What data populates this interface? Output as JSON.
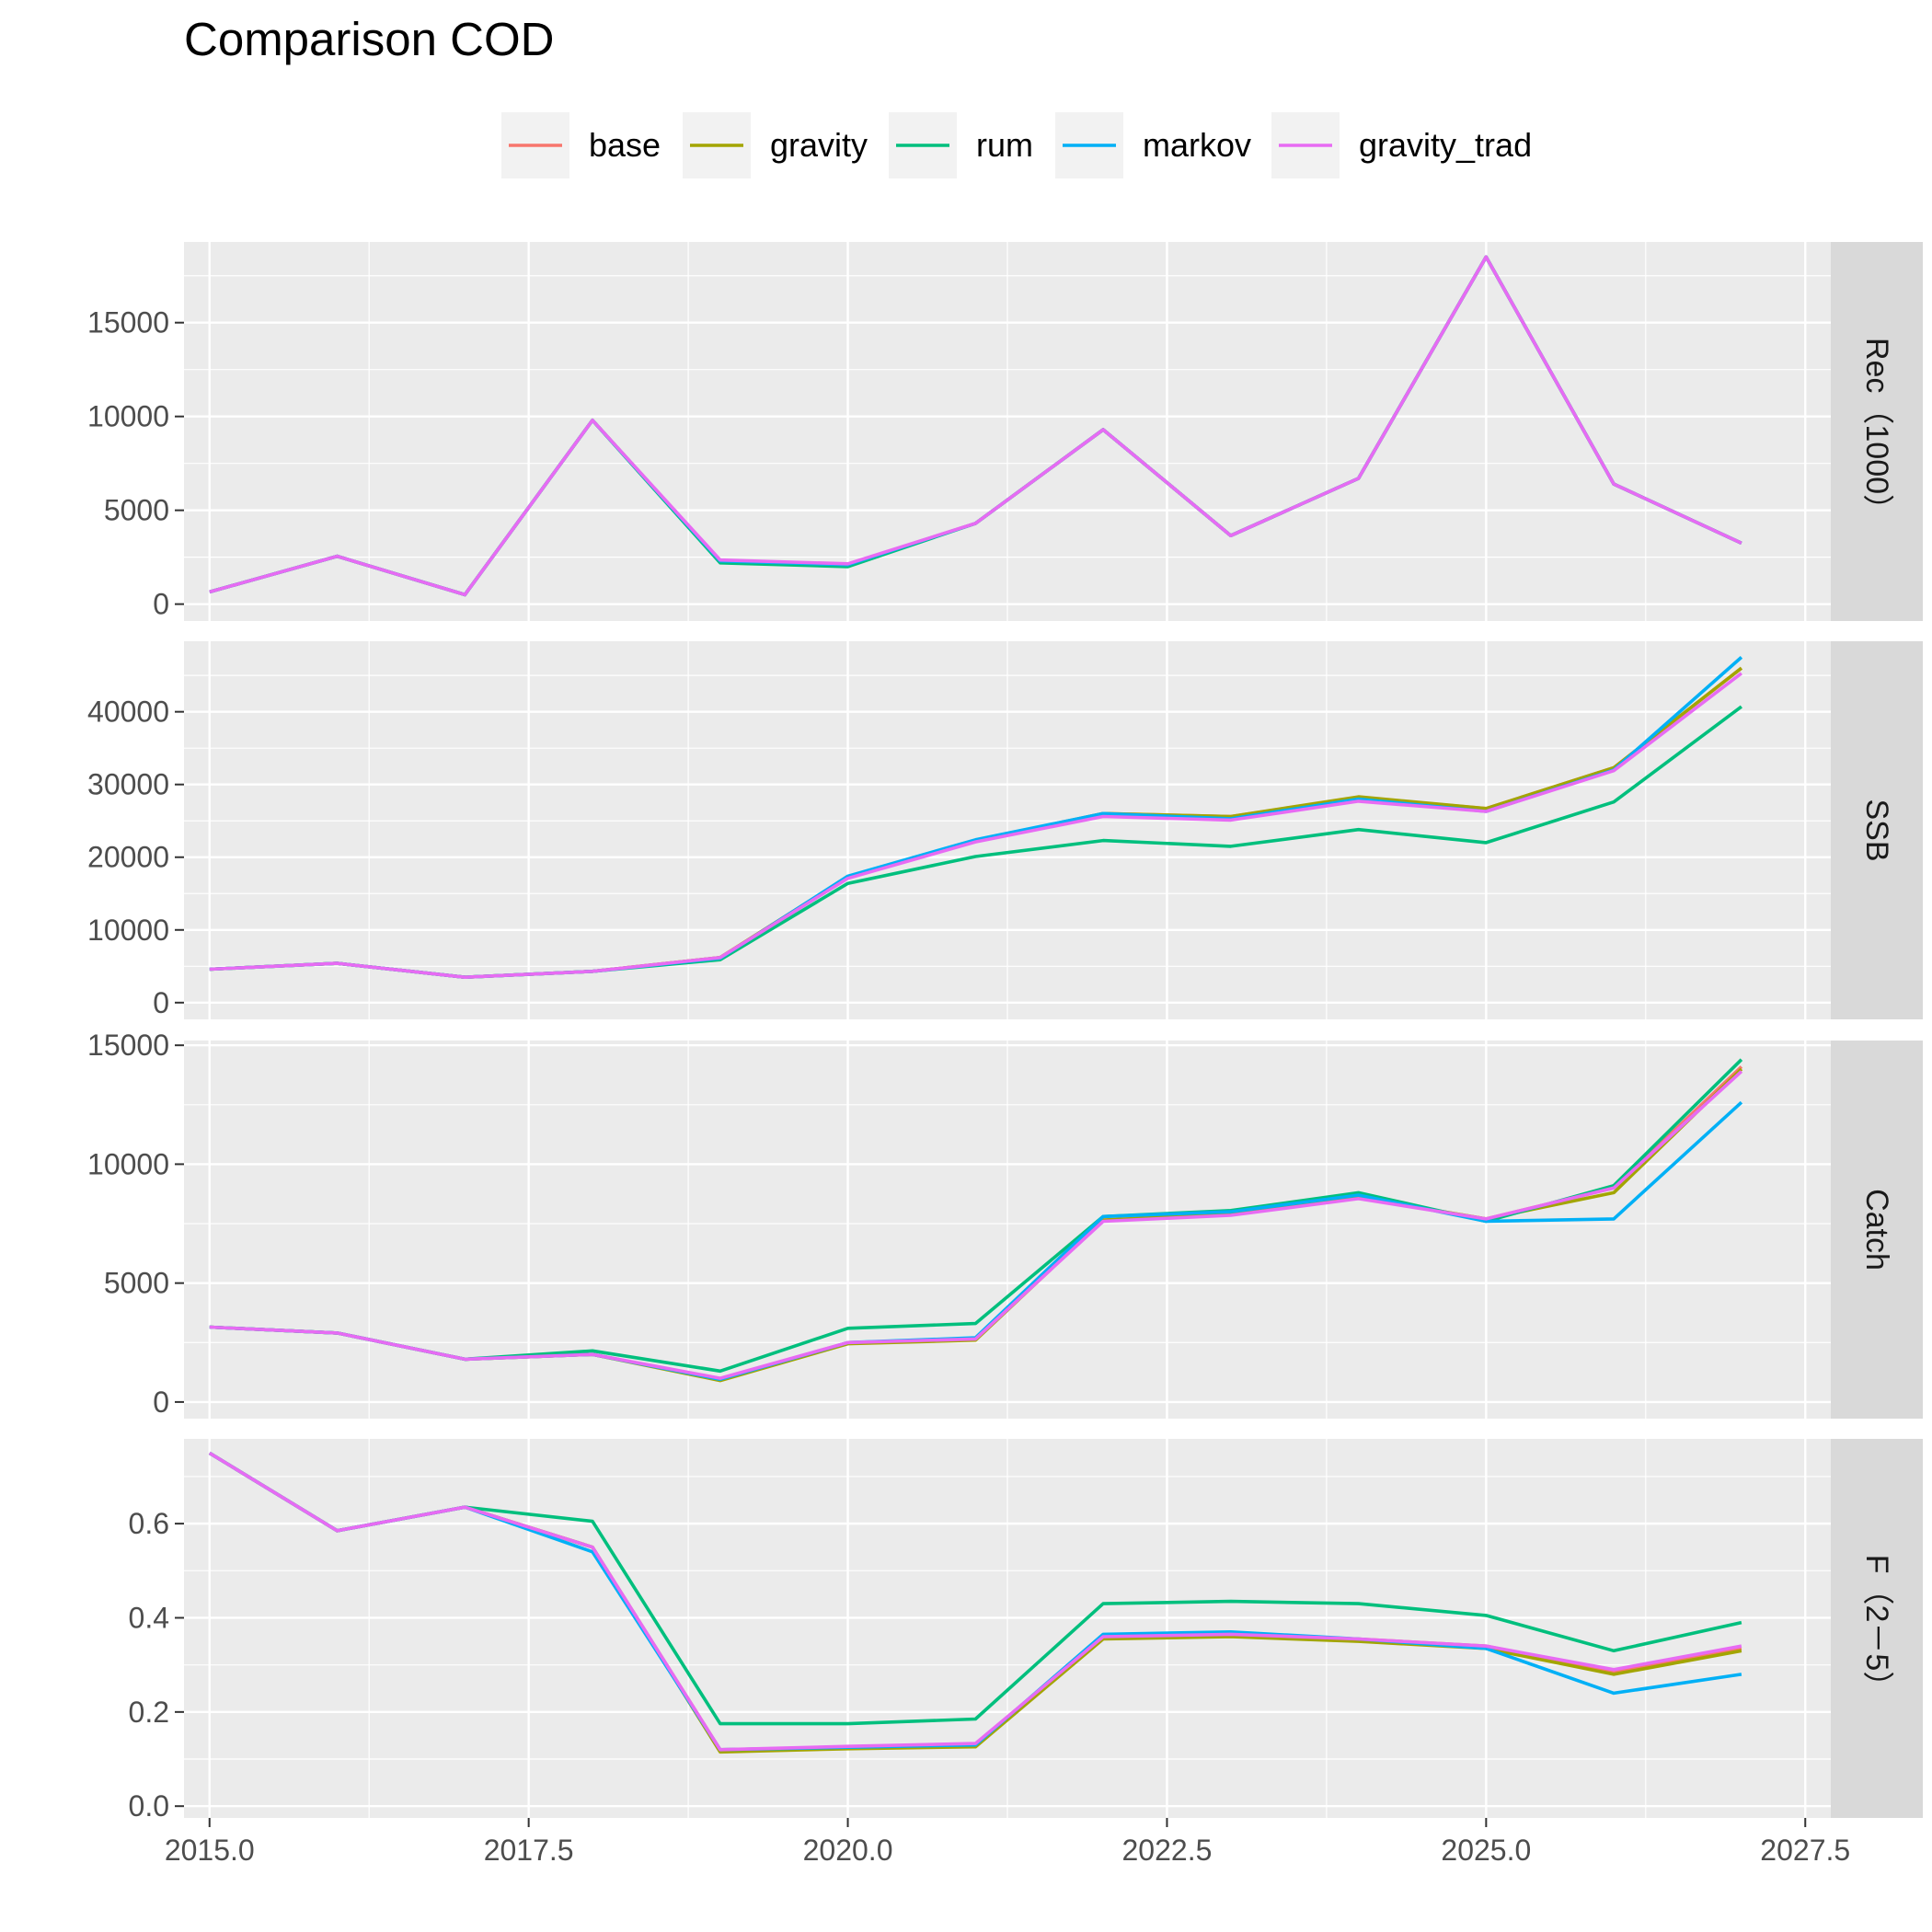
{
  "chart_data": {
    "type": "line",
    "title": "Comparison COD",
    "xlim": [
      2014.8,
      2027.7
    ],
    "x_ticks": [
      "2015.0",
      "2017.5",
      "2020.0",
      "2022.5",
      "2025.0",
      "2027.5"
    ],
    "x_tick_values": [
      2015.0,
      2017.5,
      2020.0,
      2022.5,
      2025.0,
      2027.5
    ],
    "x": [
      2015,
      2016,
      2017,
      2018,
      2019,
      2020,
      2021,
      2022,
      2023,
      2024,
      2025,
      2026,
      2027
    ],
    "legend": {
      "position": "top",
      "entries": [
        {
          "name": "base",
          "color": "#F8766D"
        },
        {
          "name": "gravity",
          "color": "#A3A500"
        },
        {
          "name": "rum",
          "color": "#00BF7D"
        },
        {
          "name": "markov",
          "color": "#00B0F6"
        },
        {
          "name": "gravity_trad",
          "color": "#E76BF3"
        }
      ]
    },
    "grid": true,
    "panels": [
      {
        "strip": "Rec（1000）",
        "ylim": [
          -900,
          19300
        ],
        "y_ticks": [
          "0",
          "5000",
          "10000",
          "15000"
        ],
        "y_tick_values": [
          0,
          5000,
          10000,
          15000
        ],
        "series": [
          {
            "name": "base",
            "values": [
              650,
              2550,
              500,
              9800,
              2300,
              2100,
              4300,
              9300,
              3650,
              6700,
              18500,
              6400,
              3250
            ]
          },
          {
            "name": "gravity",
            "values": [
              650,
              2550,
              500,
              9800,
              2300,
              2100,
              4300,
              9300,
              3650,
              6700,
              18500,
              6400,
              3250
            ]
          },
          {
            "name": "rum",
            "values": [
              650,
              2550,
              500,
              9800,
              2200,
              2000,
              4300,
              9300,
              3650,
              6700,
              18500,
              6400,
              3250
            ]
          },
          {
            "name": "markov",
            "values": [
              650,
              2550,
              500,
              9800,
              2300,
              2100,
              4300,
              9300,
              3650,
              6700,
              18500,
              6400,
              3250
            ]
          },
          {
            "name": "gravity_trad",
            "values": [
              650,
              2550,
              500,
              9800,
              2350,
              2150,
              4300,
              9300,
              3650,
              6700,
              18500,
              6400,
              3250
            ]
          }
        ]
      },
      {
        "strip": "SSB",
        "ylim": [
          -2300,
          49700
        ],
        "y_ticks": [
          "0",
          "10000",
          "20000",
          "30000",
          "40000"
        ],
        "y_tick_values": [
          0,
          10000,
          20000,
          30000,
          40000
        ],
        "series": [
          {
            "name": "base",
            "values": [
              4600,
              5400,
              3500,
              4300,
              6200,
              17300,
              22300,
              26000,
              25600,
              28200,
              26700,
              32300,
              46000
            ]
          },
          {
            "name": "gravity",
            "values": [
              4600,
              5400,
              3500,
              4300,
              6200,
              17300,
              22300,
              26000,
              25600,
              28300,
              26700,
              32300,
              46000
            ]
          },
          {
            "name": "rum",
            "values": [
              4600,
              5400,
              3500,
              4300,
              5900,
              16400,
              20100,
              22300,
              21500,
              23800,
              22000,
              27600,
              40700
            ]
          },
          {
            "name": "markov",
            "values": [
              4600,
              5400,
              3500,
              4300,
              6100,
              17400,
              22400,
              26000,
              25300,
              28000,
              26300,
              32000,
              47500
            ]
          },
          {
            "name": "gravity_trad",
            "values": [
              4600,
              5400,
              3500,
              4300,
              6200,
              17100,
              22100,
              25600,
              25100,
              27700,
              26300,
              31900,
              45300
            ]
          }
        ]
      },
      {
        "strip": "Catch",
        "ylim": [
          -700,
          15200
        ],
        "y_ticks": [
          "0",
          "5000",
          "10000",
          "15000"
        ],
        "y_tick_values": [
          0,
          5000,
          10000,
          15000
        ],
        "series": [
          {
            "name": "base",
            "values": [
              3150,
              2900,
              1800,
              2000,
              950,
              2500,
              2650,
              7650,
              7900,
              8600,
              7700,
              9000,
              14100
            ]
          },
          {
            "name": "gravity",
            "values": [
              3150,
              2900,
              1800,
              2000,
              900,
              2450,
              2600,
              7650,
              7900,
              8600,
              7700,
              8800,
              14000
            ]
          },
          {
            "name": "rum",
            "values": [
              3150,
              2900,
              1800,
              2150,
              1300,
              3100,
              3300,
              7800,
              8050,
              8800,
              7600,
              9100,
              14400
            ]
          },
          {
            "name": "markov",
            "values": [
              3150,
              2900,
              1800,
              2000,
              950,
              2500,
              2700,
              7800,
              8000,
              8700,
              7600,
              7700,
              12600
            ]
          },
          {
            "name": "gravity_trad",
            "values": [
              3150,
              2900,
              1800,
              2000,
              1000,
              2500,
              2650,
              7600,
              7850,
              8550,
              7700,
              9000,
              13900
            ]
          }
        ]
      },
      {
        "strip": "F（2－5）",
        "ylim": [
          -0.025,
          0.78
        ],
        "y_ticks": [
          "0.0",
          "0.2",
          "0.4",
          "0.6"
        ],
        "y_tick_values": [
          0.0,
          0.2,
          0.4,
          0.6
        ],
        "series": [
          {
            "name": "base",
            "values": [
              0.75,
              0.585,
              0.635,
              0.55,
              0.12,
              0.125,
              0.13,
              0.36,
              0.365,
              0.355,
              0.34,
              0.285,
              0.335
            ]
          },
          {
            "name": "gravity",
            "values": [
              0.75,
              0.585,
              0.635,
              0.55,
              0.115,
              0.122,
              0.126,
              0.355,
              0.36,
              0.35,
              0.335,
              0.28,
              0.33
            ]
          },
          {
            "name": "rum",
            "values": [
              0.75,
              0.585,
              0.635,
              0.605,
              0.175,
              0.175,
              0.185,
              0.43,
              0.435,
              0.43,
              0.405,
              0.33,
              0.39
            ]
          },
          {
            "name": "markov",
            "values": [
              0.75,
              0.585,
              0.635,
              0.54,
              0.12,
              0.125,
              0.13,
              0.365,
              0.37,
              0.355,
              0.335,
              0.24,
              0.28
            ]
          },
          {
            "name": "gravity_trad",
            "values": [
              0.75,
              0.585,
              0.635,
              0.55,
              0.12,
              0.127,
              0.133,
              0.36,
              0.365,
              0.355,
              0.34,
              0.29,
              0.34
            ]
          }
        ]
      }
    ]
  }
}
